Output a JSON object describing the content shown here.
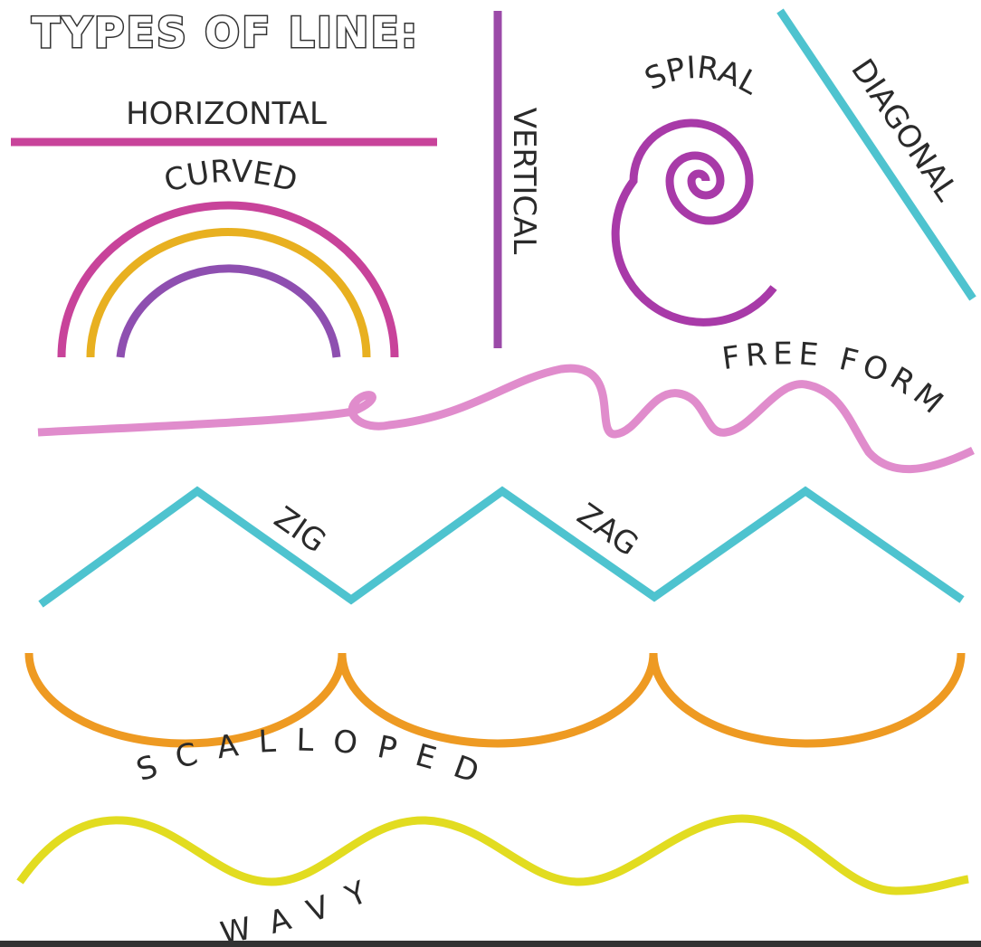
{
  "title": "TYPES OF LINE:",
  "lines": [
    {
      "label": "HORIZONTAL"
    },
    {
      "label": "CURVED"
    },
    {
      "label": "VERTICAL"
    },
    {
      "label": "SPIRAL"
    },
    {
      "label": "DIAGONAL"
    },
    {
      "label": "FREE FORM"
    },
    {
      "label": "ZIG"
    },
    {
      "label": "ZAG"
    },
    {
      "label": "SCALLOPED"
    },
    {
      "label": "WAVY"
    }
  ]
}
